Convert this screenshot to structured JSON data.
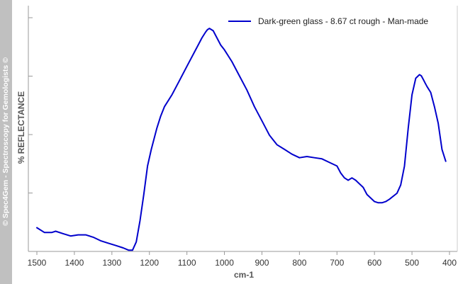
{
  "watermark": "© Spec4Gem - Spectroscopy for Gemologists ©",
  "chart_data": {
    "type": "line",
    "title": "",
    "xlabel": "cm-1",
    "ylabel": "% REFLECTANCE",
    "x_reversed": true,
    "xlim": [
      1510,
      400
    ],
    "ylim": [
      0,
      1
    ],
    "y_tick_labels_shown": false,
    "x_ticks": [
      1500,
      1400,
      1300,
      1200,
      1100,
      1000,
      900,
      800,
      700,
      600,
      500,
      400
    ],
    "x_tick_labels": [
      "1500",
      "1400",
      "1300",
      "1200",
      "1100",
      "1000",
      "900",
      "800",
      "700",
      "600",
      "500",
      "400"
    ],
    "grid": false,
    "legend_position": "top-right",
    "series": [
      {
        "name": "Dark-green glass - 8.67 ct rough - Man-made",
        "color": "#0000cc",
        "x": [
          1500,
          1480,
          1460,
          1450,
          1430,
          1410,
          1390,
          1370,
          1350,
          1330,
          1310,
          1290,
          1270,
          1255,
          1245,
          1235,
          1225,
          1215,
          1205,
          1195,
          1180,
          1170,
          1160,
          1150,
          1140,
          1120,
          1100,
          1080,
          1070,
          1060,
          1050,
          1045,
          1040,
          1030,
          1020,
          1010,
          1000,
          980,
          960,
          940,
          920,
          900,
          880,
          860,
          840,
          820,
          800,
          780,
          760,
          740,
          720,
          700,
          690,
          680,
          670,
          660,
          650,
          630,
          620,
          600,
          590,
          580,
          570,
          560,
          540,
          530,
          520,
          510,
          500,
          490,
          480,
          475,
          470,
          465,
          460,
          450,
          440,
          430,
          420,
          410
        ],
        "y": [
          0.1,
          0.08,
          0.08,
          0.085,
          0.075,
          0.065,
          0.07,
          0.07,
          0.06,
          0.045,
          0.035,
          0.025,
          0.015,
          0.005,
          0.005,
          0.04,
          0.13,
          0.24,
          0.36,
          0.43,
          0.52,
          0.57,
          0.61,
          0.635,
          0.66,
          0.72,
          0.78,
          0.84,
          0.87,
          0.9,
          0.925,
          0.935,
          0.94,
          0.93,
          0.9,
          0.87,
          0.85,
          0.8,
          0.74,
          0.68,
          0.61,
          0.55,
          0.49,
          0.45,
          0.43,
          0.41,
          0.395,
          0.4,
          0.395,
          0.39,
          0.375,
          0.36,
          0.33,
          0.31,
          0.3,
          0.31,
          0.3,
          0.27,
          0.24,
          0.21,
          0.205,
          0.205,
          0.21,
          0.22,
          0.245,
          0.28,
          0.36,
          0.52,
          0.66,
          0.73,
          0.745,
          0.74,
          0.725,
          0.71,
          0.695,
          0.67,
          0.61,
          0.54,
          0.43,
          0.38
        ]
      }
    ]
  }
}
